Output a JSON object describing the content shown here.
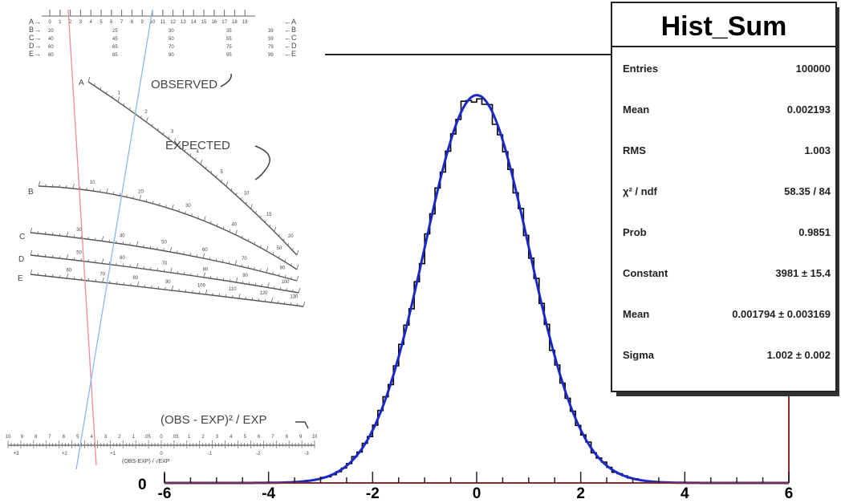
{
  "chart_data": {
    "type": "line",
    "title": "Hist_Sum",
    "xlim": [
      -6,
      6
    ],
    "ylim": [
      0,
      4200
    ],
    "x_ticks": [
      "-6",
      "-4",
      "-2",
      "0",
      "2",
      "4",
      "6"
    ],
    "y_ticks": [
      "0"
    ],
    "grid": false,
    "legend": "none",
    "series": [
      {
        "kind": "histogram",
        "color": "#000000",
        "bins": 120,
        "range": [
          -6,
          6
        ]
      },
      {
        "kind": "gaussian-fit",
        "color": "#1a28c8",
        "constant": 3981,
        "mean": 0.001794,
        "sigma": 1.002
      }
    ],
    "stats_box": {
      "title": "Hist_Sum",
      "rows": [
        {
          "label": "Entries",
          "value": "100000"
        },
        {
          "label": "Mean",
          "value": "0.002193"
        },
        {
          "label": "RMS",
          "value": "1.003"
        },
        {
          "label": "χ² / ndf",
          "value": "58.35 / 84"
        },
        {
          "label": "Prob",
          "value": "0.9851"
        },
        {
          "label": "Constant",
          "value": "3981 ± 15.4"
        },
        {
          "label": "Mean",
          "value": "0.001794 ± 0.003169"
        },
        {
          "label": "Sigma",
          "value": "1.002 ± 0.002"
        }
      ]
    }
  },
  "nomogram": {
    "row_letters": [
      "A",
      "B",
      "C",
      "D",
      "E"
    ],
    "top_numbers": [
      "0",
      "1",
      "2",
      "3",
      "4",
      "5",
      "6",
      "7",
      "8",
      "9",
      "10",
      "11",
      "12",
      "13",
      "14",
      "15",
      "16",
      "17",
      "18",
      "19"
    ],
    "row_values": {
      "B": [
        "20",
        "25",
        "30",
        "35",
        "39"
      ],
      "C": [
        "40",
        "45",
        "50",
        "55",
        "59"
      ],
      "D": [
        "60",
        "65",
        "70",
        "75",
        "79"
      ],
      "E": [
        "80",
        "85",
        "90",
        "95",
        "99"
      ]
    },
    "observed_label": "OBSERVED",
    "expected_label": "EXPECTED",
    "curve_labels": {
      "A": [
        "1",
        "2",
        "3",
        "4",
        "5",
        "10",
        "15",
        "20"
      ],
      "B": [
        "10",
        "20",
        "30",
        "40",
        "50"
      ],
      "C": [
        "30",
        "40",
        "50",
        "60",
        "70",
        "80"
      ],
      "D": [
        "50",
        "60",
        "70",
        "80",
        "90",
        "100"
      ],
      "E": [
        "60",
        "70",
        "80",
        "90",
        "100",
        "110",
        "120",
        "130"
      ]
    },
    "formula": "(OBS - EXP)² / EXP",
    "scale_top": [
      "10",
      "9",
      "8",
      "7",
      "6",
      "5",
      "4",
      "3",
      "2",
      "1",
      ".05",
      "0",
      ".05",
      "1",
      "2",
      "3",
      "4",
      "5",
      "6",
      "7",
      "8",
      "9",
      "10"
    ],
    "scale_bottom": [
      "+3",
      "+2",
      "+1",
      "0",
      "-1",
      "-2",
      "-3"
    ],
    "scale_caption": "(OBS-EXP) / √EXP"
  }
}
